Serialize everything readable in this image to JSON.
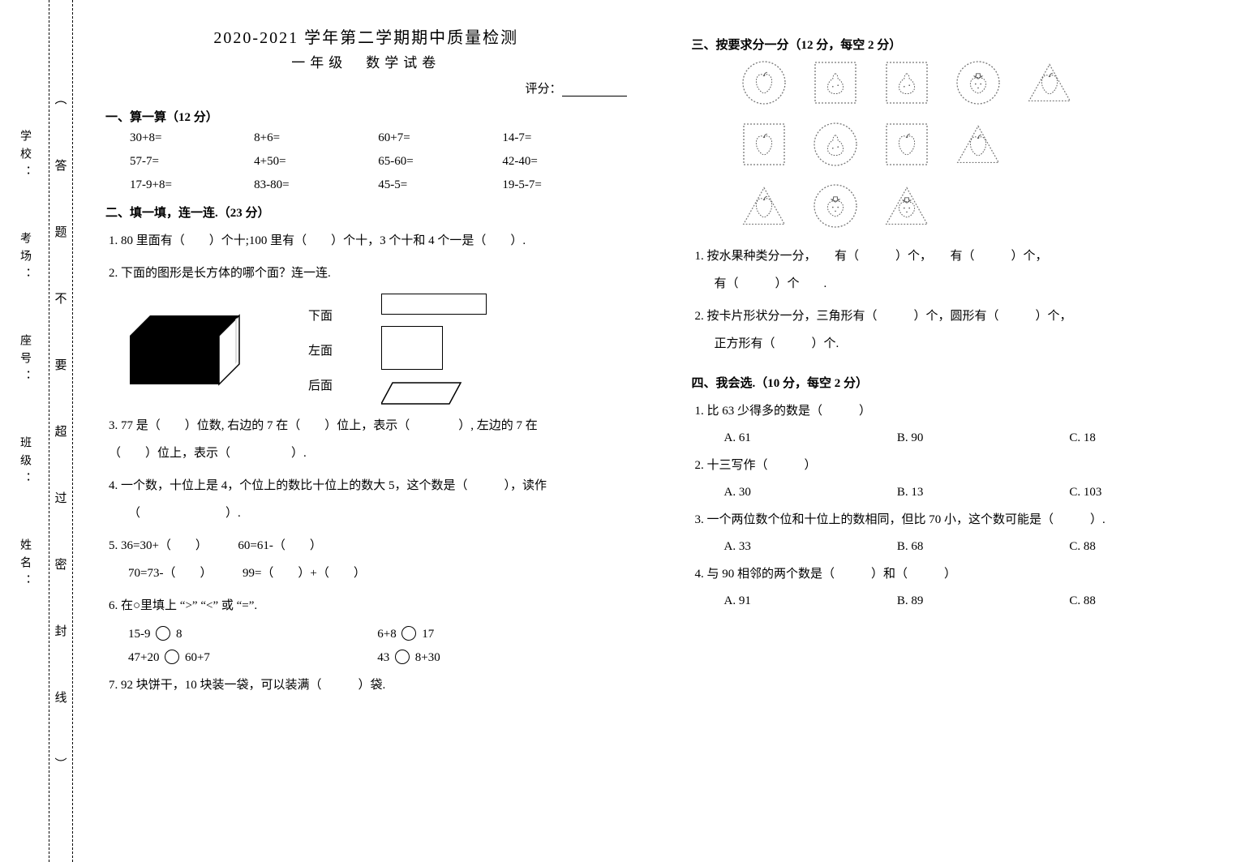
{
  "header": {
    "title": "2020-2021 学年第二学期期中质量检测",
    "subtitle": "一年级　数学试卷",
    "scoreLabel": "评分："
  },
  "gutter": {
    "labels": [
      "学校：",
      "考场：",
      "座号：",
      "班级：",
      "姓名："
    ],
    "bindChars": [
      "︵",
      "答",
      "题",
      "不",
      "要",
      "超",
      "过",
      "密",
      "封",
      "线",
      "︶"
    ]
  },
  "sections": {
    "s1": {
      "title": "一、算一算（12 分）",
      "items": [
        "30+8=",
        "8+6=",
        "60+7=",
        "14-7=",
        "57-7=",
        "4+50=",
        "65-60=",
        "42-40=",
        "17-9+8=",
        "83-80=",
        "45-5=",
        "19-5-7="
      ]
    },
    "s2": {
      "title": "二、填一填，连一连.（23 分）",
      "q1": "1.  80 里面有（　　）个十;100 里有（　　）个十，3 个十和 4 个一是（　　）.",
      "q2": "2.  下面的图形是长方体的哪个面？连一连.",
      "faces": [
        "下面",
        "左面",
        "后面"
      ],
      "q3a": "3.  77 是（　　）位数, 右边的 7 在（　　）位上，表示（　　　　）, 左边的 7 在",
      "q3b": "（　　）位上，表示（　　　　　）.",
      "q4a": "4. 一个数，十位上是 4，个位上的数比十位上的数大 5，这个数是（　　　），读作",
      "q4b": "（　　　　　　　）.",
      "q5": "5.   36=30+（　　）　　　60=61-（　　）",
      "q5b": "70=73-（　　）　　　99=（　　）+（　　）",
      "q6": "6.  在○里填上 “>” “<” 或 “=”.",
      "circ": [
        {
          "l": "15-9",
          "r": "8"
        },
        {
          "l": "6+8",
          "r": "17"
        },
        {
          "l": "47+20",
          "r": "60+7"
        },
        {
          "l": "43",
          "r": "8+30"
        }
      ],
      "q7": "7. 92 块饼干，10 块装一袋，可以装满（　　　）袋."
    },
    "s3": {
      "title": "三、按要求分一分（12 分，每空 2 分）",
      "q1": "1. 按水果种类分一分，　　有（　　　）个，　　有（　　　）个，",
      "q1b": "有（　　　）个　　.",
      "q2": "2. 按卡片形状分一分，三角形有（　　　）个，圆形有（　　　）个，",
      "q2b": "正方形有（　　　）个."
    },
    "s4": {
      "title": "四、我会选.（10 分，每空 2 分）",
      "mc": [
        {
          "stem": "1. 比 63 少得多的数是（　　　）",
          "opts": [
            "A. 61",
            "B. 90",
            "C. 18"
          ]
        },
        {
          "stem": "2. 十三写作（　　　）",
          "opts": [
            "A. 30",
            "B. 13",
            "C. 103"
          ]
        },
        {
          "stem": "3. 一个两位数个位和十位上的数相同，但比 70 小，这个数可能是（　　　）.",
          "opts": [
            "A. 33",
            "B. 68",
            "C. 88"
          ]
        },
        {
          "stem": "4. 与 90 相邻的两个数是（　　　）和（　　　）",
          "opts": [
            "A. 91",
            "B. 89",
            "C. 88"
          ]
        }
      ]
    }
  },
  "fruitIcons": [
    {
      "shape": "circle",
      "fruit": "apple"
    },
    {
      "shape": "square",
      "fruit": "pear"
    },
    {
      "shape": "square",
      "fruit": "pear"
    },
    {
      "shape": "circle",
      "fruit": "strawberry"
    },
    {
      "shape": "triangle",
      "fruit": "apple"
    },
    {
      "shape": "square",
      "fruit": "apple"
    },
    {
      "shape": "circle",
      "fruit": "pear"
    },
    {
      "shape": "square",
      "fruit": "apple"
    },
    {
      "shape": "triangle",
      "fruit": "apple"
    },
    {
      "shape": "triangle",
      "fruit": "apple"
    },
    {
      "shape": "circle",
      "fruit": "strawberry"
    },
    {
      "shape": "triangle",
      "fruit": "strawberry"
    }
  ],
  "inlineIcons": {
    "apple": "apple",
    "strawberry": "strawberry",
    "pear": "pear"
  }
}
